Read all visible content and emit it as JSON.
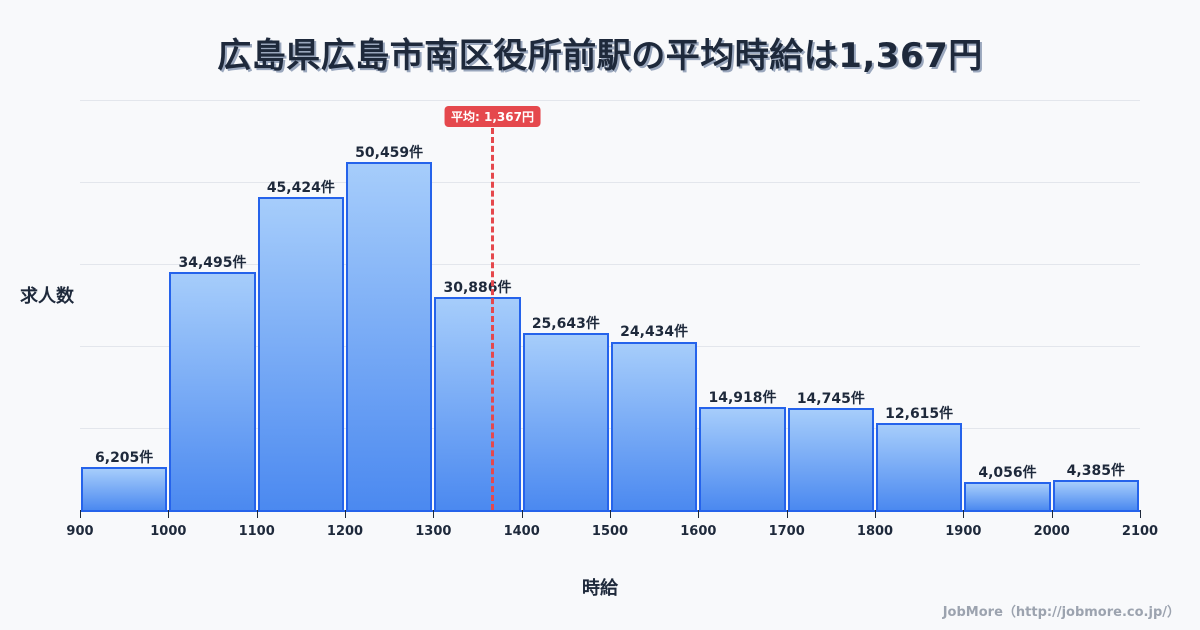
{
  "title": "広島県広島市南区役所前駅の平均時給は1,367円",
  "average_badge": "平均: 1,367円",
  "ylabel": "求人数",
  "xlabel": "時給",
  "footer": "JobMore（http://jobmore.co.jp/）",
  "colors": {
    "bar_border": "#2563eb",
    "bar_top": "#a6cdfb",
    "bar_bottom": "#4b89f0",
    "average_line": "#e5484d",
    "text": "#1e293b",
    "background": "#f8f9fb"
  },
  "chart_data": {
    "type": "bar",
    "title": "広島県広島市南区役所前駅の平均時給は1,367円",
    "xlabel": "時給",
    "ylabel": "求人数",
    "bins": [
      {
        "from": 900,
        "to": 1000,
        "value": 6205,
        "label": "6,205件"
      },
      {
        "from": 1000,
        "to": 1100,
        "value": 34495,
        "label": "34,495件"
      },
      {
        "from": 1100,
        "to": 1200,
        "value": 45424,
        "label": "45,424件"
      },
      {
        "from": 1200,
        "to": 1300,
        "value": 50459,
        "label": "50,459件"
      },
      {
        "from": 1300,
        "to": 1400,
        "value": 30886,
        "label": "30,886件"
      },
      {
        "from": 1400,
        "to": 1500,
        "value": 25643,
        "label": "25,643件"
      },
      {
        "from": 1500,
        "to": 1600,
        "value": 24434,
        "label": "24,434件"
      },
      {
        "from": 1600,
        "to": 1700,
        "value": 14918,
        "label": "14,918件"
      },
      {
        "from": 1700,
        "to": 1800,
        "value": 14745,
        "label": "14,745件"
      },
      {
        "from": 1800,
        "to": 1900,
        "value": 12615,
        "label": "12,615件"
      },
      {
        "from": 1900,
        "to": 2000,
        "value": 4056,
        "label": "4,056件"
      },
      {
        "from": 2000,
        "to": 2100,
        "value": 4385,
        "label": "4,385件"
      }
    ],
    "categories": [
      "900-1000",
      "1000-1100",
      "1100-1200",
      "1200-1300",
      "1300-1400",
      "1400-1500",
      "1500-1600",
      "1600-1700",
      "1700-1800",
      "1800-1900",
      "1900-2000",
      "2000-2100"
    ],
    "values": [
      6205,
      34495,
      45424,
      50459,
      30886,
      25643,
      24434,
      14918,
      14745,
      12615,
      4056,
      4385
    ],
    "x_ticks": [
      "900",
      "1000",
      "1100",
      "1200",
      "1300",
      "1400",
      "1500",
      "1600",
      "1700",
      "1800",
      "1900",
      "2000",
      "2100"
    ],
    "xlim": [
      900,
      2100
    ],
    "ylim": [
      0,
      59450
    ],
    "average": 1367,
    "average_label": "平均: 1,367円",
    "grid": true,
    "legend": null
  }
}
